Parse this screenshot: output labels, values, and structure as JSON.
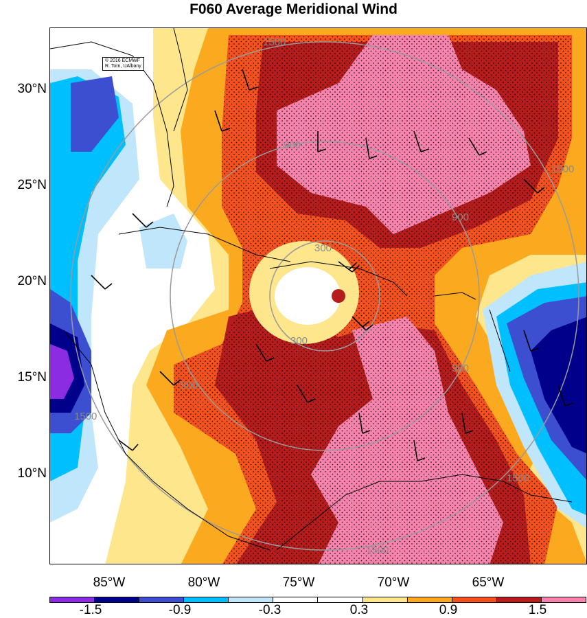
{
  "title": "F060 Average Meridional Wind",
  "credit": {
    "line1": "© 2016 ECMWF",
    "line2": "R. Torn, UAlbany"
  },
  "lat_labels": [
    "30°N",
    "25°N",
    "20°N",
    "15°N",
    "10°N"
  ],
  "lon_labels": [
    "85°W",
    "80°W",
    "75°W",
    "70°W",
    "65°W"
  ],
  "radius_labels": [
    "1500",
    "900",
    "300",
    "300",
    "900",
    "1500",
    "900",
    "1500",
    "900",
    "1500",
    "1500"
  ],
  "colorbar": {
    "colors": [
      "#8b2be2",
      "#00008b",
      "#3b4fd0",
      "#00bfff",
      "#bfe6fa",
      "#ffffff",
      "#ffffff",
      "#fde68c",
      "#fbaa1f",
      "#f4511e",
      "#b71c1c",
      "#f783ac"
    ],
    "labels": [
      "-1.5",
      "-0.9",
      "-0.3",
      "0.3",
      "0.9",
      "1.5"
    ]
  },
  "field_colors": {
    "neg_strong": "#00008b",
    "neg_medium": "#3b4fd0",
    "neg_weak": "#00bfff",
    "neg_faint": "#bfe6fa",
    "neg_extreme": "#8b2be2",
    "pos_faint": "#fde68c",
    "pos_weak": "#fbaa1f",
    "pos_medium": "#f4511e",
    "pos_strong": "#b71c1c",
    "pos_extreme": "#f783ac",
    "range_rings": "#9a9a9a"
  }
}
